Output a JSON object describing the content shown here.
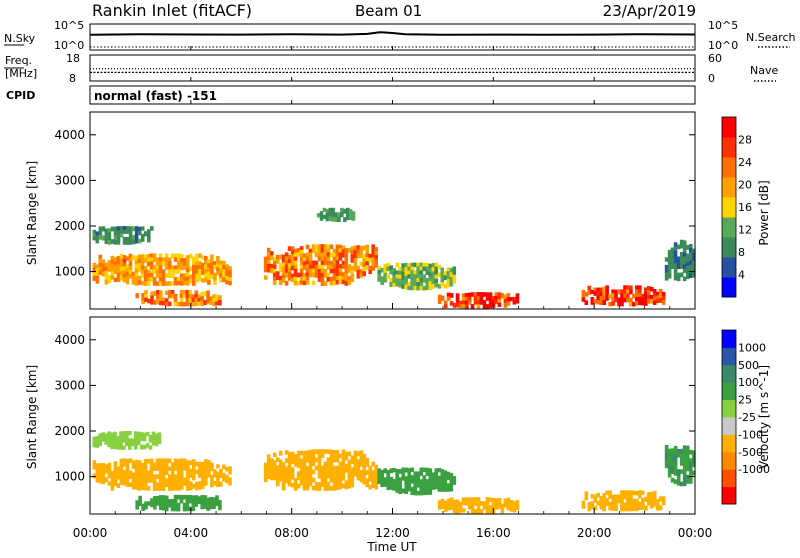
{
  "header": {
    "site": "Rankin Inlet (fitACF)",
    "beam": "Beam 01",
    "date": "23/Apr/2019"
  },
  "noise_panel": {
    "left_label": "N.Sky",
    "left_ticks": [
      "10^5",
      "10^0"
    ],
    "right_label": "N.Search",
    "right_ticks": [
      "10^5",
      "10^0"
    ]
  },
  "freq_panel": {
    "left_label_1": "Freq.",
    "left_label_2": "[MHz]",
    "left_ticks": [
      "18",
      "8"
    ],
    "right_label": "Nave",
    "right_ticks": [
      "60",
      "0"
    ]
  },
  "cpid": {
    "label": "CPID",
    "value": "normal (fast) -151"
  },
  "colors": {
    "power_scale": [
      "#0000ff",
      "#2850a0",
      "#3a8a5a",
      "#5aa85a",
      "#ffd400",
      "#ffa000",
      "#ff7000",
      "#ff3000",
      "#ff0000"
    ],
    "velocity_scale": [
      "#ff0000",
      "#ff5000",
      "#ff8a00",
      "#ffb000",
      "#c8c8c8",
      "#88d040",
      "#3aa040",
      "#3a8a6a",
      "#2a56a8",
      "#0000ff"
    ]
  },
  "chart_data": [
    {
      "type": "line",
      "name_left": "N.Sky",
      "name_right": "N.Search",
      "x_range_hours": [
        0,
        24
      ],
      "y_scale": "log",
      "ylim": [
        1,
        100000
      ],
      "x": [
        0,
        2,
        4,
        6,
        8,
        10,
        11,
        11.5,
        12,
        12.5,
        14,
        16,
        18,
        20,
        22,
        24
      ],
      "sky_values": [
        1000,
        1300,
        1200,
        1100,
        1300,
        1100,
        1600,
        4000,
        2500,
        1300,
        1000,
        1100,
        1000,
        1100,
        1400,
        1200
      ],
      "search_values": [
        1,
        1,
        1,
        1,
        1,
        1,
        1,
        1,
        1,
        1,
        1,
        1,
        1,
        1,
        1,
        1
      ]
    },
    {
      "type": "line",
      "name_left": "Freq.",
      "name_right": "Nave",
      "x_range_hours": [
        0,
        24
      ],
      "freq_range_mhz": [
        8,
        18
      ],
      "nave_range": [
        0,
        60
      ],
      "x": [
        0,
        24
      ],
      "freq_values": [
        11,
        11
      ],
      "nave_values": [
        28,
        28
      ]
    },
    {
      "type": "heatmap",
      "parameter": "power",
      "xlabel": "",
      "ylabel": "Slant Range [km]",
      "x_range_hours": [
        0,
        24
      ],
      "ylim": [
        180,
        4500
      ],
      "y_ticks": [
        1000,
        2000,
        3000,
        4000
      ],
      "colorbar_label": "Power [dB]",
      "colorbar_ticks": [
        "28",
        "24",
        "20",
        "16",
        "12",
        "8",
        "4"
      ],
      "colorbar_range": [
        0,
        32
      ],
      "echo_regions": [
        {
          "t0": 0.1,
          "t1": 5.6,
          "r0": 700,
          "r1": 1400,
          "value": 20
        },
        {
          "t0": 0.1,
          "t1": 2.5,
          "r0": 1600,
          "r1": 2000,
          "value": 9
        },
        {
          "t0": 1.8,
          "t1": 5.2,
          "r0": 250,
          "r1": 600,
          "value": 22
        },
        {
          "t0": 6.9,
          "t1": 11.4,
          "r0": 700,
          "r1": 1600,
          "value": 22
        },
        {
          "t0": 9.0,
          "t1": 10.5,
          "r0": 2100,
          "r1": 2400,
          "value": 10
        },
        {
          "t0": 11.4,
          "t1": 14.5,
          "r0": 600,
          "r1": 1200,
          "value": 13
        },
        {
          "t0": 13.8,
          "t1": 17.0,
          "r0": 200,
          "r1": 550,
          "value": 27
        },
        {
          "t0": 19.5,
          "t1": 22.8,
          "r0": 250,
          "r1": 700,
          "value": 27
        },
        {
          "t0": 22.8,
          "t1": 24.0,
          "r0": 800,
          "r1": 1700,
          "value": 8
        }
      ]
    },
    {
      "type": "heatmap",
      "parameter": "velocity",
      "xlabel": "Time UT",
      "ylabel": "Slant Range [km]",
      "x_range_hours": [
        0,
        24
      ],
      "x_tick_labels": [
        "00:00",
        "04:00",
        "08:00",
        "12:00",
        "16:00",
        "20:00",
        "00:00"
      ],
      "ylim": [
        180,
        4500
      ],
      "y_ticks": [
        1000,
        2000,
        3000,
        4000
      ],
      "colorbar_label": "Velocity [m s^-1]",
      "colorbar_ticks": [
        "1000",
        "500",
        "100",
        "25",
        "-25",
        "-100",
        "-500",
        "-1000"
      ],
      "echo_regions": [
        {
          "t0": 0.1,
          "t1": 5.6,
          "r0": 700,
          "r1": 1400,
          "value": -200
        },
        {
          "t0": 0.1,
          "t1": 2.8,
          "r0": 1600,
          "r1": 2000,
          "value": 0
        },
        {
          "t0": 1.8,
          "t1": 5.2,
          "r0": 250,
          "r1": 600,
          "value": 80
        },
        {
          "t0": 6.9,
          "t1": 11.4,
          "r0": 700,
          "r1": 1600,
          "value": -250
        },
        {
          "t0": 11.4,
          "t1": 14.5,
          "r0": 600,
          "r1": 1200,
          "value": 60
        },
        {
          "t0": 13.8,
          "t1": 17.0,
          "r0": 200,
          "r1": 550,
          "value": -150
        },
        {
          "t0": 19.5,
          "t1": 22.8,
          "r0": 250,
          "r1": 700,
          "value": -400
        },
        {
          "t0": 22.8,
          "t1": 24.0,
          "r0": 800,
          "r1": 1700,
          "value": 90
        }
      ]
    }
  ]
}
